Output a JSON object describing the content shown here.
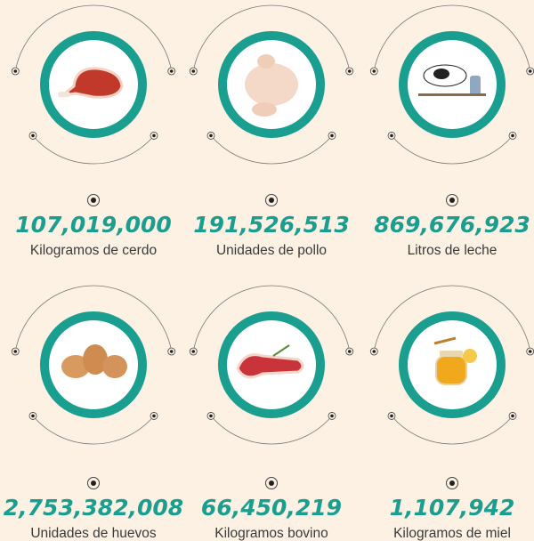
{
  "items": [
    {
      "value": "107,019,000",
      "label": "Kilogramos de cerdo"
    },
    {
      "value": "191,526,513",
      "label": "Unidades de pollo"
    },
    {
      "value": "869,676,923",
      "label": "Litros de leche"
    },
    {
      "value": "2,753,382,008",
      "label": "Unidades de huevos"
    },
    {
      "value": "66,450,219",
      "label": "Kilogramos bovino"
    },
    {
      "value": "1,107,942",
      "label": "Kilogramos de miel"
    }
  ]
}
